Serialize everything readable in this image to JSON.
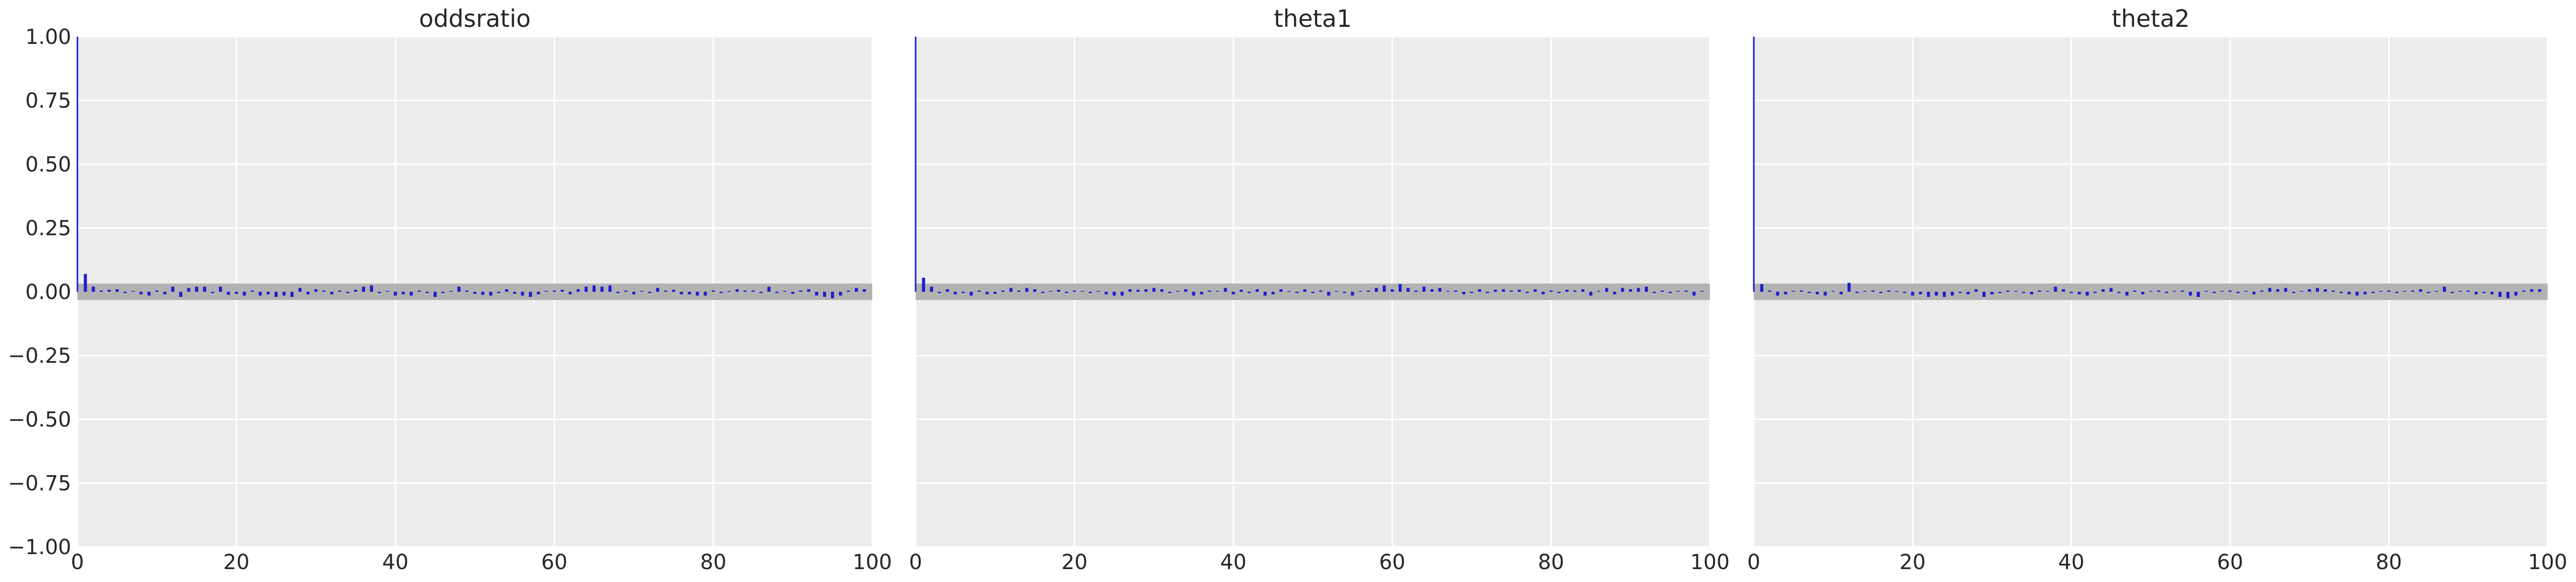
{
  "colors": {
    "background": "#ffffff",
    "plot_background": "#ececec",
    "grid": "#ffffff",
    "bar": "#1f1fcf",
    "band": "#b2b2b2",
    "text": "#262626"
  },
  "chart_data": [
    {
      "type": "bar",
      "title": "oddsratio",
      "xlabel": "",
      "ylabel": "",
      "xlim": [
        0,
        100
      ],
      "ylim": [
        -1.0,
        1.0
      ],
      "xticks": [
        "0",
        "20",
        "40",
        "60",
        "80",
        "100"
      ],
      "yticks": [
        "1.00",
        "0.75",
        "0.50",
        "0.25",
        "0.00",
        "−0.25",
        "−0.50",
        "−0.75",
        "−1.00"
      ],
      "grid": true,
      "band": [
        -0.02,
        0.02
      ],
      "lags": [
        0,
        1,
        2,
        3,
        4,
        5,
        6,
        7,
        8,
        9,
        10,
        11,
        12,
        13,
        14,
        15,
        16,
        17,
        18,
        19,
        20,
        21,
        22,
        23,
        24,
        25,
        26,
        27,
        28,
        29,
        30,
        31,
        32,
        33,
        34,
        35,
        36,
        37,
        38,
        39,
        40,
        41,
        42,
        43,
        44,
        45,
        46,
        47,
        48,
        49,
        50,
        51,
        52,
        53,
        54,
        55,
        56,
        57,
        58,
        59,
        60,
        61,
        62,
        63,
        64,
        65,
        66,
        67,
        68,
        69,
        70,
        71,
        72,
        73,
        74,
        75,
        76,
        77,
        78,
        79,
        80,
        81,
        82,
        83,
        84,
        85,
        86,
        87,
        88,
        89,
        90,
        91,
        92,
        93,
        94,
        95,
        96,
        97,
        98,
        99
      ],
      "values": [
        1.0,
        0.07,
        0.02,
        0.005,
        0.008,
        0.01,
        -0.005,
        0.003,
        -0.01,
        -0.015,
        0.005,
        -0.01,
        0.02,
        -0.02,
        0.015,
        0.02,
        0.02,
        -0.005,
        0.02,
        -0.012,
        -0.008,
        -0.015,
        0.005,
        -0.015,
        -0.01,
        -0.02,
        -0.015,
        -0.02,
        0.015,
        -0.01,
        0.01,
        0.005,
        -0.01,
        0.005,
        -0.005,
        0.008,
        0.02,
        0.025,
        -0.005,
        0.003,
        -0.015,
        -0.01,
        -0.015,
        0.005,
        -0.005,
        -0.02,
        -0.005,
        0.003,
        0.02,
        0.005,
        -0.008,
        -0.012,
        -0.015,
        -0.005,
        0.01,
        -0.008,
        -0.015,
        -0.02,
        -0.01,
        0.003,
        0.005,
        0.008,
        -0.01,
        0.01,
        0.02,
        0.025,
        0.02,
        0.025,
        -0.005,
        0.005,
        -0.01,
        0.003,
        -0.005,
        0.015,
        0.005,
        0.008,
        -0.01,
        -0.01,
        -0.015,
        -0.015,
        0.005,
        -0.005,
        0.003,
        0.01,
        0.005,
        0.005,
        -0.005,
        0.02,
        -0.005,
        0.003,
        -0.008,
        0.005,
        0.01,
        -0.015,
        -0.02,
        -0.025,
        -0.015,
        0.005,
        0.015,
        0.01
      ]
    },
    {
      "type": "bar",
      "title": "theta1",
      "xlabel": "",
      "ylabel": "",
      "xlim": [
        0,
        100
      ],
      "ylim": [
        -1.0,
        1.0
      ],
      "xticks": [
        "0",
        "20",
        "40",
        "60",
        "80",
        "100"
      ],
      "grid": true,
      "band": [
        -0.02,
        0.02
      ],
      "lags": [
        0,
        1,
        2,
        3,
        4,
        5,
        6,
        7,
        8,
        9,
        10,
        11,
        12,
        13,
        14,
        15,
        16,
        17,
        18,
        19,
        20,
        21,
        22,
        23,
        24,
        25,
        26,
        27,
        28,
        29,
        30,
        31,
        32,
        33,
        34,
        35,
        36,
        37,
        38,
        39,
        40,
        41,
        42,
        43,
        44,
        45,
        46,
        47,
        48,
        49,
        50,
        51,
        52,
        53,
        54,
        55,
        56,
        57,
        58,
        59,
        60,
        61,
        62,
        63,
        64,
        65,
        66,
        67,
        68,
        69,
        70,
        71,
        72,
        73,
        74,
        75,
        76,
        77,
        78,
        79,
        80,
        81,
        82,
        83,
        84,
        85,
        86,
        87,
        88,
        89,
        90,
        91,
        92,
        93,
        94,
        95,
        96,
        97,
        98,
        99
      ],
      "values": [
        1.0,
        0.055,
        0.02,
        -0.005,
        0.01,
        -0.01,
        -0.005,
        -0.015,
        0.005,
        -0.01,
        -0.008,
        0.005,
        0.015,
        0.005,
        0.015,
        0.01,
        -0.005,
        0.003,
        0.008,
        -0.005,
        0.005,
        0.003,
        -0.005,
        0.003,
        -0.01,
        -0.015,
        -0.015,
        0.01,
        0.008,
        0.01,
        0.015,
        0.01,
        -0.005,
        0.003,
        0.01,
        -0.015,
        -0.01,
        0.005,
        0.003,
        0.015,
        -0.01,
        0.008,
        -0.005,
        0.01,
        -0.015,
        -0.01,
        0.01,
        0.003,
        -0.005,
        0.01,
        -0.005,
        0.005,
        -0.015,
        0.003,
        -0.005,
        -0.015,
        0.003,
        0.005,
        0.015,
        0.025,
        0.01,
        0.03,
        0.015,
        0.005,
        0.02,
        0.01,
        0.015,
        0.003,
        0.005,
        -0.01,
        -0.005,
        0.01,
        -0.005,
        0.008,
        0.01,
        0.005,
        0.008,
        -0.005,
        0.01,
        -0.01,
        0.005,
        -0.005,
        0.008,
        0.005,
        0.01,
        -0.015,
        0.003,
        0.015,
        -0.01,
        0.015,
        0.01,
        0.015,
        0.02,
        -0.005,
        0.005,
        -0.005,
        0.003,
        0.005,
        -0.015,
        0.003
      ]
    },
    {
      "type": "bar",
      "title": "theta2",
      "xlabel": "",
      "ylabel": "",
      "xlim": [
        0,
        100
      ],
      "ylim": [
        -1.0,
        1.0
      ],
      "xticks": [
        "0",
        "20",
        "40",
        "60",
        "80",
        "100"
      ],
      "grid": true,
      "band": [
        -0.02,
        0.02
      ],
      "lags": [
        0,
        1,
        2,
        3,
        4,
        5,
        6,
        7,
        8,
        9,
        10,
        11,
        12,
        13,
        14,
        15,
        16,
        17,
        18,
        19,
        20,
        21,
        22,
        23,
        24,
        25,
        26,
        27,
        28,
        29,
        30,
        31,
        32,
        33,
        34,
        35,
        36,
        37,
        38,
        39,
        40,
        41,
        42,
        43,
        44,
        45,
        46,
        47,
        48,
        49,
        50,
        51,
        52,
        53,
        54,
        55,
        56,
        57,
        58,
        59,
        60,
        61,
        62,
        63,
        64,
        65,
        66,
        67,
        68,
        69,
        70,
        71,
        72,
        73,
        74,
        75,
        76,
        77,
        78,
        79,
        80,
        81,
        82,
        83,
        84,
        85,
        86,
        87,
        88,
        89,
        90,
        91,
        92,
        93,
        94,
        95,
        96,
        97,
        98,
        99
      ],
      "values": [
        1.0,
        0.03,
        0.005,
        -0.015,
        -0.01,
        0.003,
        0.005,
        -0.005,
        -0.01,
        -0.015,
        0.003,
        -0.01,
        0.035,
        -0.005,
        0.003,
        0.005,
        -0.005,
        0.005,
        0.003,
        -0.005,
        -0.015,
        -0.01,
        -0.02,
        -0.015,
        -0.02,
        -0.015,
        -0.005,
        -0.01,
        0.01,
        -0.02,
        -0.01,
        -0.005,
        0.005,
        0.003,
        -0.005,
        -0.01,
        0.005,
        0.003,
        0.02,
        0.01,
        -0.005,
        -0.01,
        -0.015,
        -0.005,
        0.01,
        0.015,
        -0.005,
        -0.015,
        0.005,
        -0.01,
        0.003,
        0.005,
        -0.005,
        0.003,
        0.005,
        -0.015,
        -0.02,
        0.003,
        -0.005,
        0.003,
        0.005,
        -0.005,
        0.003,
        -0.01,
        0.005,
        0.015,
        0.01,
        0.015,
        -0.005,
        0.003,
        0.01,
        0.015,
        0.01,
        0.005,
        -0.005,
        -0.01,
        -0.015,
        -0.01,
        -0.005,
        0.003,
        0.005,
        -0.005,
        0.003,
        0.005,
        0.01,
        -0.005,
        0.003,
        0.02,
        -0.005,
        0.003,
        0.005,
        -0.01,
        -0.005,
        -0.01,
        -0.02,
        -0.025,
        -0.015,
        0.005,
        0.01,
        0.01
      ]
    }
  ]
}
